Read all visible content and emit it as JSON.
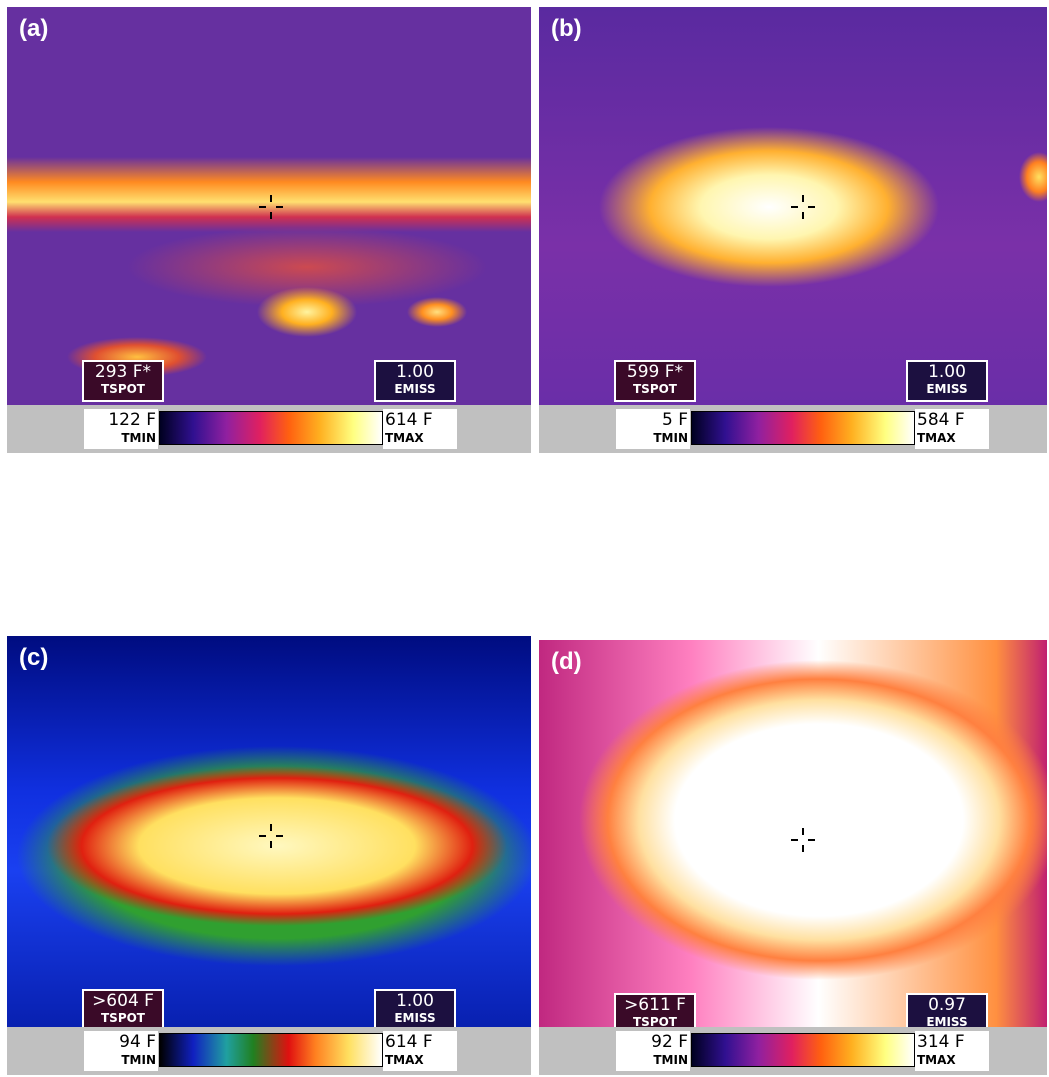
{
  "panels": [
    {
      "label": "(a)",
      "tspot": "293 F*",
      "tspot_label": "TSPOT",
      "emiss": "1.00",
      "emiss_label": "EMISS",
      "tmin": "122 F",
      "tmin_label": "TMIN",
      "tmax": "614 F",
      "tmax_label": "TMAX"
    },
    {
      "label": "(b)",
      "tspot": "599 F*",
      "tspot_label": "TSPOT",
      "emiss": "1.00",
      "emiss_label": "EMISS",
      "tmin": "5 F",
      "tmin_label": "TMIN",
      "tmax": "584 F",
      "tmax_label": "TMAX"
    },
    {
      "label": "(c)",
      "tspot": ">604 F",
      "tspot_label": "TSPOT",
      "emiss": "1.00",
      "emiss_label": "EMISS",
      "tmin": "94 F",
      "tmin_label": "TMIN",
      "tmax": "614 F",
      "tmax_label": "TMAX"
    },
    {
      "label": "(d)",
      "tspot": ">611 F",
      "tspot_label": "TSPOT",
      "emiss": "0.97",
      "emiss_label": "EMISS",
      "tmin": "92 F",
      "tmin_label": "TMIN",
      "tmax": "314 F",
      "tmax_label": "TMAX"
    }
  ]
}
